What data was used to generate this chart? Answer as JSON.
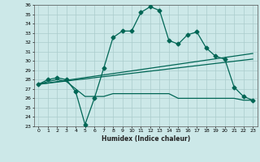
{
  "title": "",
  "xlabel": "Humidex (Indice chaleur)",
  "background_color": "#cce8e8",
  "grid_color": "#aacccc",
  "line_color": "#006655",
  "xlim": [
    -0.5,
    23.5
  ],
  "ylim": [
    23,
    36
  ],
  "xticks": [
    0,
    1,
    2,
    3,
    4,
    5,
    6,
    7,
    8,
    9,
    10,
    11,
    12,
    13,
    14,
    15,
    16,
    17,
    18,
    19,
    20,
    21,
    22,
    23
  ],
  "yticks": [
    23,
    24,
    25,
    26,
    27,
    28,
    29,
    30,
    31,
    32,
    33,
    34,
    35,
    36
  ],
  "series": [
    {
      "x": [
        0,
        1,
        2,
        3,
        4,
        5,
        6,
        7,
        8,
        9,
        10,
        11,
        12,
        13,
        14,
        15,
        16,
        17,
        18,
        19,
        20,
        21,
        22,
        23
      ],
      "y": [
        27.5,
        28.0,
        28.2,
        28.0,
        26.7,
        23.2,
        26.0,
        29.2,
        32.5,
        33.2,
        33.2,
        35.2,
        35.8,
        35.4,
        32.2,
        31.8,
        32.8,
        33.1,
        31.4,
        30.5,
        30.2,
        27.2,
        26.2,
        25.8
      ],
      "marker": "D",
      "markersize": 2.5,
      "linewidth": 0.9
    },
    {
      "x": [
        0,
        1,
        2,
        3,
        4,
        5,
        6,
        7,
        8,
        9,
        10,
        11,
        12,
        13,
        14,
        15,
        16,
        17,
        18,
        19,
        20,
        21,
        22,
        23
      ],
      "y": [
        27.5,
        27.8,
        28.0,
        27.8,
        27.0,
        26.2,
        26.2,
        26.2,
        26.5,
        26.5,
        26.5,
        26.5,
        26.5,
        26.5,
        26.5,
        26.0,
        26.0,
        26.0,
        26.0,
        26.0,
        26.0,
        26.0,
        25.8,
        25.8
      ],
      "marker": null,
      "markersize": 0,
      "linewidth": 0.9
    },
    {
      "x": [
        0,
        23
      ],
      "y": [
        27.5,
        30.2
      ],
      "marker": null,
      "markersize": 0,
      "linewidth": 0.9
    },
    {
      "x": [
        0,
        23
      ],
      "y": [
        27.5,
        30.8
      ],
      "marker": null,
      "markersize": 0,
      "linewidth": 0.9
    }
  ]
}
